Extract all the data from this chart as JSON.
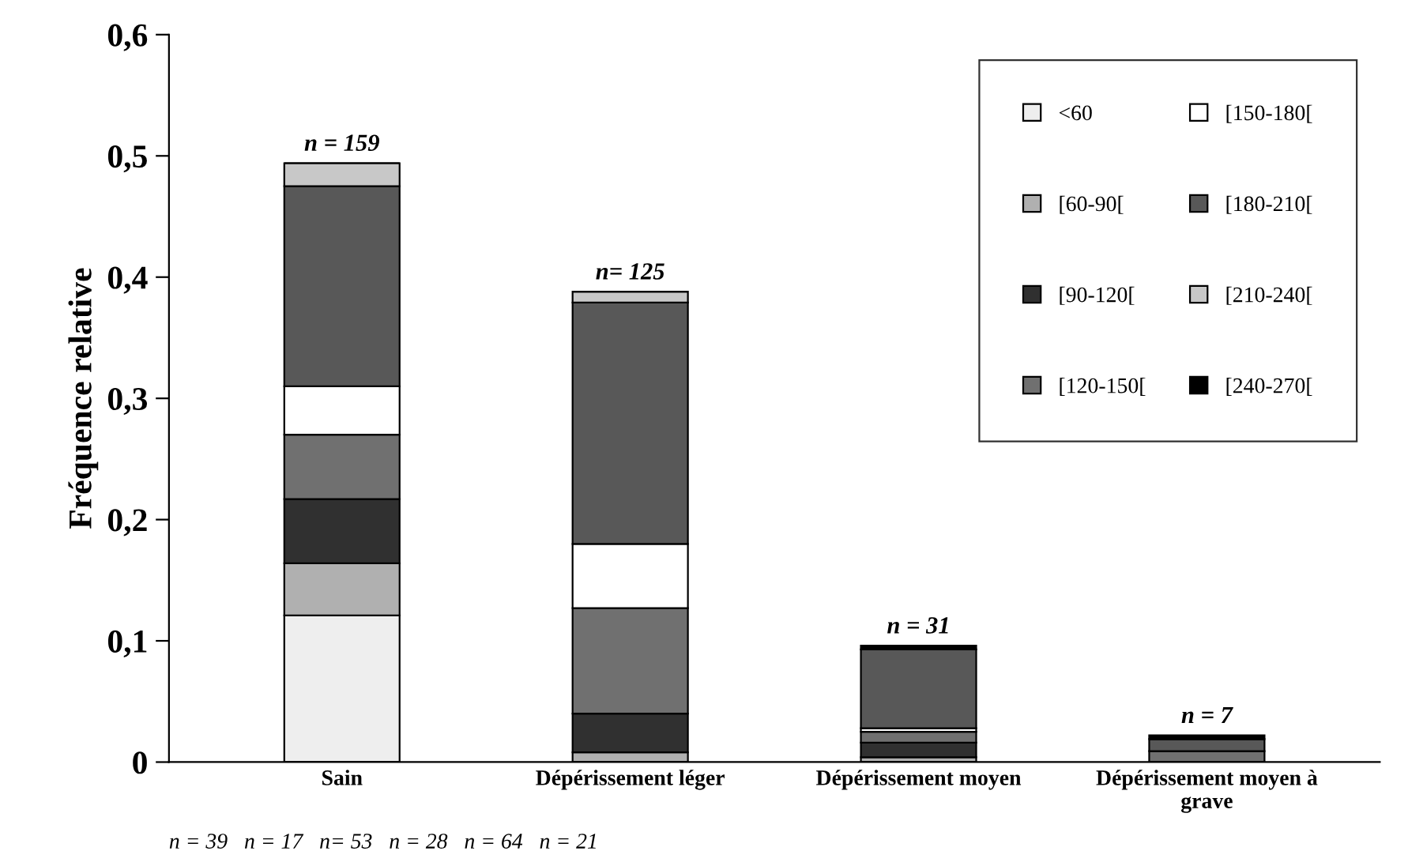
{
  "chart_data": {
    "type": "bar",
    "stacked": true,
    "ylabel": "Fréquence relative",
    "categories": [
      "Sain",
      "Dépérissement léger",
      "Dépérissement moyen",
      "Dépérissement moyen à\ngrave"
    ],
    "series": [
      {
        "name": "<60",
        "color": "#eeeeee",
        "values": [
          0.121,
          0,
          0,
          null
        ]
      },
      {
        "name": "[60-90[",
        "color": "#b0b0b0",
        "values": [
          0.043,
          0.008,
          0.004,
          0
        ]
      },
      {
        "name": "[90-120[",
        "color": "#303030",
        "values": [
          0.053,
          0.032,
          0.012,
          0
        ]
      },
      {
        "name": "[120-150[",
        "color": "#707070",
        "values": [
          0.053,
          0.087,
          0.009,
          0.009
        ]
      },
      {
        "name": "[150-180[",
        "color": "#ffffff",
        "values": [
          0.04,
          0.053,
          0.003,
          0
        ]
      },
      {
        "name": "[180-210[",
        "color": "#585858",
        "values": [
          0.165,
          0.199,
          0.065,
          0.01
        ]
      },
      {
        "name": "[210-240[",
        "color": "#c8c8c8",
        "values": [
          0.019,
          0.009,
          0,
          0
        ]
      },
      {
        "name": "[240-270[",
        "color": "#000000",
        "values": [
          0,
          0,
          0.003,
          0.003
        ]
      }
    ],
    "annotations": [
      {
        "text": "n = 159",
        "x": "Sain",
        "y": 0.494
      },
      {
        "text": "n= 125",
        "x": "Dépérissement léger",
        "y": 0.388
      },
      {
        "text": "n = 31",
        "x": "Dépérissement moyen",
        "y": 0.096
      },
      {
        "text": "n = 7",
        "x": "Dépérissement moyen à\ngrave",
        "y": 0.022
      },
      "n = 39",
      "n = 17",
      "n= 53",
      "n = 28",
      "n = 64",
      "n = 21"
    ],
    "ylim": [
      0,
      0.6
    ],
    "yticks": [
      0,
      {
        "value": 0.1,
        "label": "0,1"
      },
      {
        "value": 0.2,
        "label": "0,2"
      },
      {
        "value": 0.3,
        "label": "0,3"
      },
      {
        "value": 0.4,
        "label": "0,4"
      },
      {
        "value": 0.5,
        "label": "0,5"
      },
      {
        "value": 0.6,
        "label": "0,6"
      }
    ],
    "grid": false,
    "legend": "top right"
  }
}
